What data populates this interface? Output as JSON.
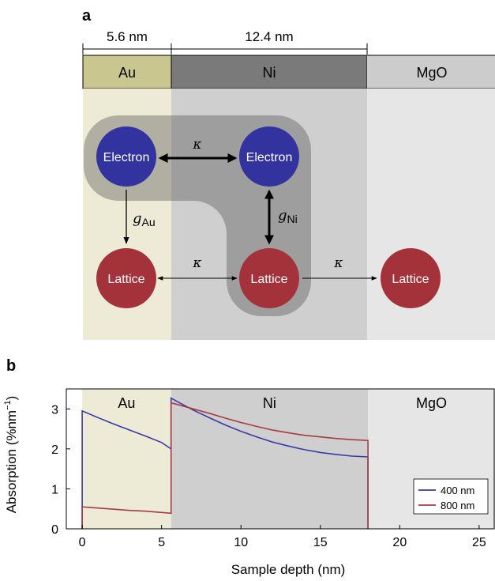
{
  "panel_a": {
    "label": "a",
    "dimensions": {
      "au_thickness": "5.6 nm",
      "ni_thickness": "12.4 nm"
    },
    "layers": {
      "au": "Au",
      "ni": "Ni",
      "mgo": "MgO"
    },
    "nodes": {
      "au_electron": "Electron",
      "ni_electron": "Electron",
      "au_lattice": "Lattice",
      "ni_lattice": "Lattice",
      "mgo_lattice": "Lattice"
    },
    "coupling": {
      "kappa_electron": "κ",
      "kappa_lattice_left": "κ",
      "kappa_lattice_right": "κ",
      "g_au_symbol": "g",
      "g_au_sub": "Au",
      "g_ni_symbol": "g",
      "g_ni_sub": "Ni"
    },
    "colors": {
      "electron": "#3333a0",
      "lattice": "#a3323a",
      "au_bar": "#c9c690",
      "ni_bar": "#7a7a7a",
      "mgo_bar": "#cccccc",
      "au_region": "#edebd6",
      "ni_region": "#cfcfcf",
      "mgo_region": "#e6e6e6"
    }
  },
  "panel_b": {
    "label": "b",
    "regions": {
      "au": "Au",
      "ni": "Ni",
      "mgo": "MgO"
    }
  },
  "chart_data": {
    "type": "line",
    "xlabel": "Sample depth (nm)",
    "ylabel_main": "Absorption (%nm",
    "ylabel_sup": "−1",
    "ylabel_close": ")",
    "xlim": [
      -1,
      26
    ],
    "ylim": [
      0,
      3.5
    ],
    "xticks": [
      0,
      5,
      10,
      15,
      20,
      25
    ],
    "yticks": [
      0,
      1,
      2,
      3
    ],
    "region_bounds": {
      "au": [
        0,
        5.6
      ],
      "ni": [
        5.6,
        18
      ],
      "mgo": [
        18,
        26
      ]
    },
    "legend_position": "bottom-right",
    "series": [
      {
        "name": "400 nm",
        "color": "#3a3aa8",
        "x": [
          0,
          0,
          1,
          2,
          3,
          4,
          5,
          5.6,
          5.6,
          6,
          7,
          8,
          9,
          10,
          11,
          12,
          13,
          14,
          15,
          16,
          17,
          18,
          18
        ],
        "y": [
          0,
          2.95,
          2.78,
          2.62,
          2.47,
          2.32,
          2.16,
          2.0,
          3.27,
          3.18,
          2.97,
          2.78,
          2.6,
          2.44,
          2.3,
          2.17,
          2.07,
          1.98,
          1.91,
          1.86,
          1.82,
          1.8,
          0
        ]
      },
      {
        "name": "800 nm",
        "color": "#a83a44",
        "x": [
          0,
          0,
          1,
          2,
          3,
          4,
          5,
          5.6,
          5.6,
          6,
          7,
          8,
          9,
          10,
          11,
          12,
          13,
          14,
          15,
          16,
          17,
          18,
          18
        ],
        "y": [
          0,
          0.55,
          0.52,
          0.49,
          0.46,
          0.44,
          0.41,
          0.39,
          3.15,
          3.11,
          3.0,
          2.89,
          2.77,
          2.66,
          2.56,
          2.47,
          2.4,
          2.34,
          2.3,
          2.26,
          2.23,
          2.21,
          0
        ]
      }
    ]
  }
}
